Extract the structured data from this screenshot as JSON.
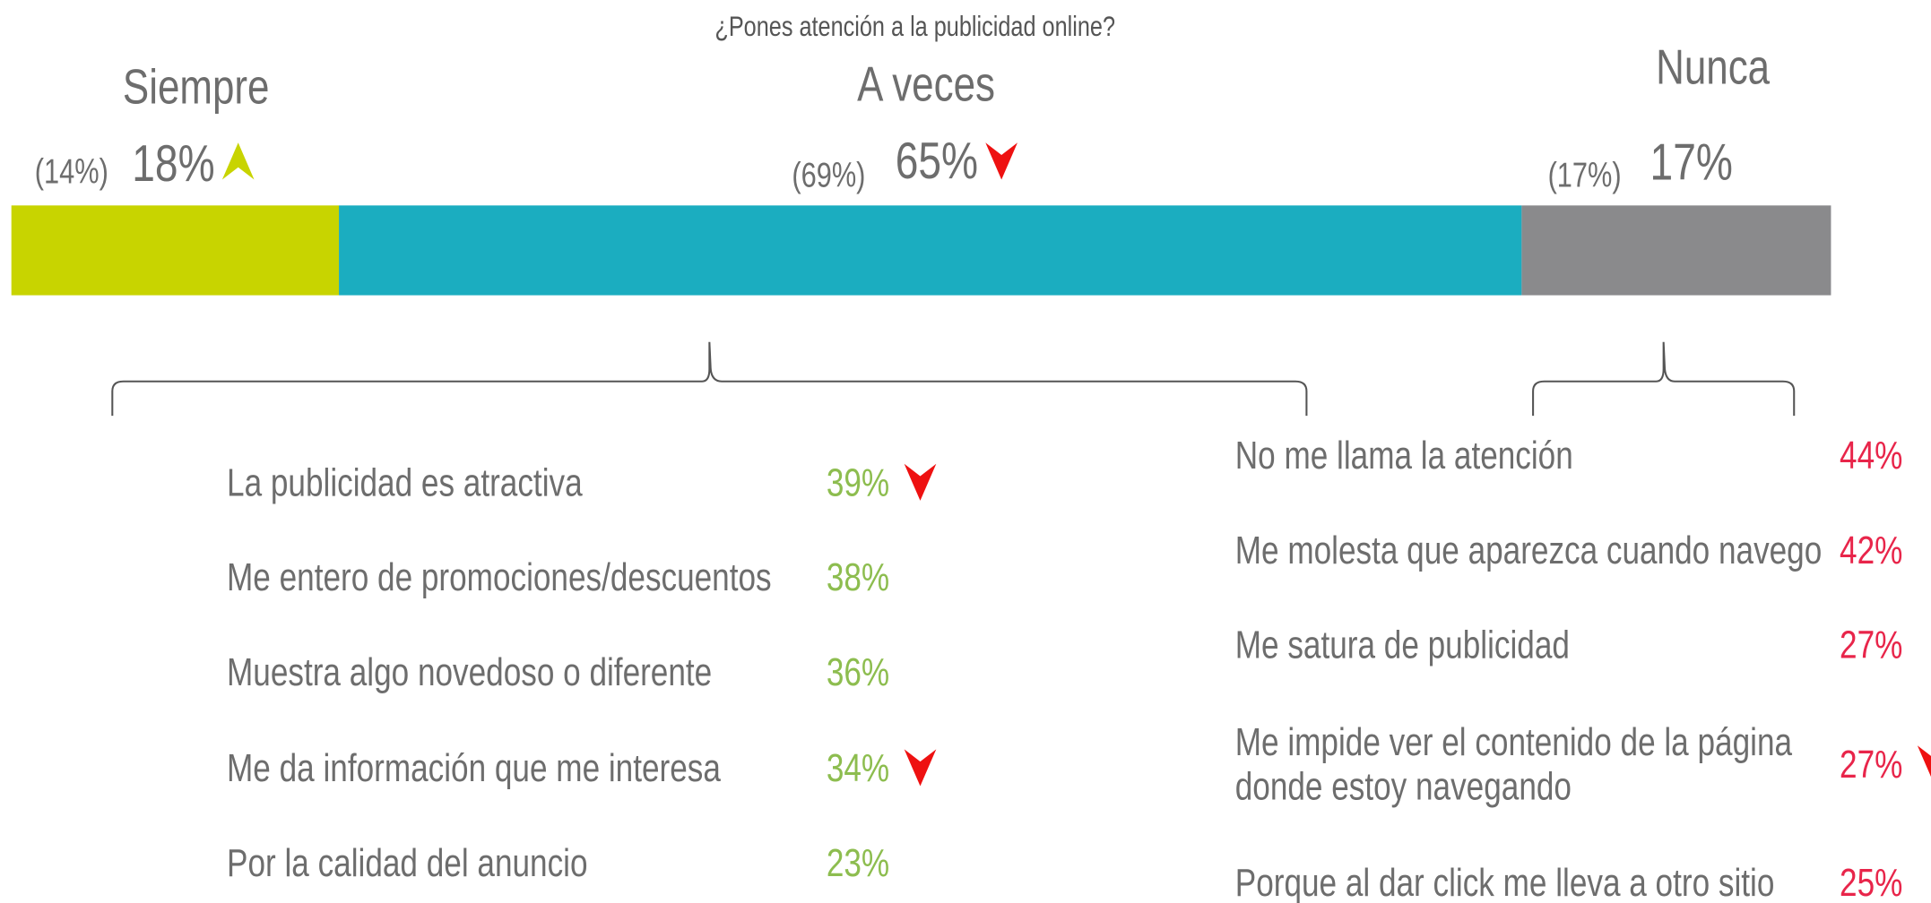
{
  "chart_data": {
    "type": "stacked_bar",
    "title": "¿Pones atención a la publicidad online?",
    "xlim": [
      0,
      100
    ],
    "series": [
      {
        "name": "Siempre",
        "color": "#c8d400",
        "values": [
          18
        ],
        "value_labels": [
          "18%"
        ],
        "previous_label": "(14%)",
        "trend": "up",
        "trend_color": "#c8d400"
      },
      {
        "name": "A veces",
        "color": "#1badc0",
        "values": [
          65
        ],
        "value_labels": [
          "65%"
        ],
        "previous_label": "(69%)",
        "trend": "down",
        "trend_color": "#ee1111"
      },
      {
        "name": "Nunca",
        "color": "#8a8a8c",
        "values": [
          17
        ],
        "value_labels": [
          "17%"
        ],
        "previous_label": "(17%)"
      }
    ]
  },
  "reasons_a_veces": {
    "color": "#8dbd4f",
    "items": [
      {
        "lines": [
          "La publicidad es atractiva"
        ],
        "value": 39,
        "value_label": "39%",
        "trend": "down"
      },
      {
        "lines": [
          "Me entero de promociones/descuentos"
        ],
        "value": 38,
        "value_label": "38%"
      },
      {
        "lines": [
          "Muestra algo novedoso o diferente"
        ],
        "value": 36,
        "value_label": "36%"
      },
      {
        "lines": [
          "Me da información que me interesa"
        ],
        "value": 34,
        "value_label": "34%",
        "trend": "down"
      },
      {
        "lines": [
          "Por la calidad del anuncio"
        ],
        "value": 23,
        "value_label": "23%"
      }
    ]
  },
  "reasons_nunca": {
    "color": "#e8254a",
    "items": [
      {
        "lines": [
          "No me llama la atención"
        ],
        "value": 44,
        "value_label": "44%"
      },
      {
        "lines": [
          "Me molesta que aparezca cuando navego"
        ],
        "value": 42,
        "value_label": "42%"
      },
      {
        "lines": [
          "Me satura de publicidad"
        ],
        "value": 27,
        "value_label": "27%"
      },
      {
        "lines": [
          "Me impide ver el contenido de la página",
          "donde estoy navegando"
        ],
        "value": 27,
        "value_label": "27%",
        "trend": "down"
      },
      {
        "lines": [
          "Porque al dar click me lleva a otro sitio"
        ],
        "value": 25,
        "value_label": "25%"
      }
    ]
  }
}
